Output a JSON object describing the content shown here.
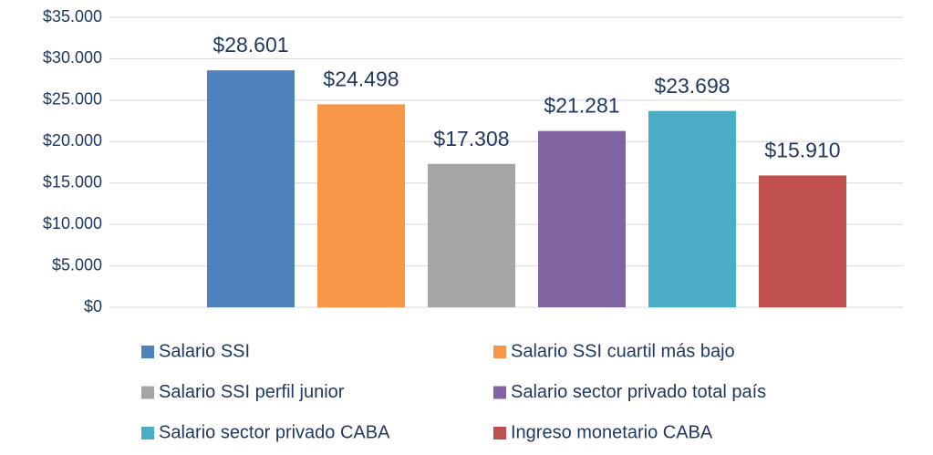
{
  "chart_data": {
    "type": "bar",
    "categories": [
      null
    ],
    "series": [
      {
        "name": "Salario SSI",
        "color": "#4f81bd",
        "values": [
          28601
        ],
        "value_labels": [
          "$28.601"
        ]
      },
      {
        "name": "Salario SSI cuartil más bajo",
        "color": "#f79646",
        "values": [
          24498
        ],
        "value_labels": [
          "$24.498"
        ]
      },
      {
        "name": "Salario SSI perfil junior",
        "color": "#a5a5a5",
        "values": [
          17308
        ],
        "value_labels": [
          "$17.308"
        ]
      },
      {
        "name": "Salario sector privado total país",
        "color": "#8064a2",
        "values": [
          21281
        ],
        "value_labels": [
          "$21.281"
        ]
      },
      {
        "name": "Salario sector privado CABA",
        "color": "#4bacc6",
        "values": [
          23698
        ],
        "value_labels": [
          "$23.698"
        ]
      },
      {
        "name": "Ingreso monetario CABA",
        "color": "#c0504d",
        "values": [
          15910
        ],
        "value_labels": [
          "$15.910"
        ]
      }
    ],
    "ylim": [
      0,
      35000
    ],
    "yticks": [
      {
        "value": 0,
        "label": "$0"
      },
      {
        "value": 5000,
        "label": "$5.000"
      },
      {
        "value": 10000,
        "label": "$10.000"
      },
      {
        "value": 15000,
        "label": "$15.000"
      },
      {
        "value": 20000,
        "label": "$20.000"
      },
      {
        "value": 25000,
        "label": "$25.000"
      },
      {
        "value": 30000,
        "label": "$30.000"
      },
      {
        "value": 35000,
        "label": "$35.000"
      }
    ],
    "grid": true,
    "legend": "bottom"
  }
}
